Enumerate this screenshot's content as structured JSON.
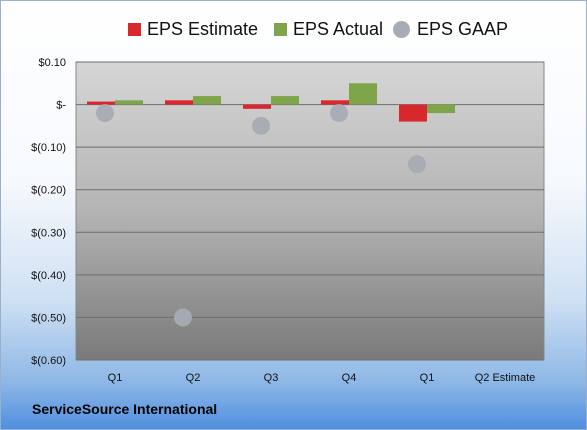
{
  "company": "ServiceSource International",
  "legend": [
    {
      "label": "EPS Estimate",
      "color": "#d9272e",
      "shape": "square"
    },
    {
      "label": "EPS Actual",
      "color": "#7fa54a",
      "shape": "square"
    },
    {
      "label": "EPS GAAP",
      "color": "#a6acb4",
      "shape": "circle"
    }
  ],
  "chart_data": {
    "type": "bar",
    "categories": [
      "Q1",
      "Q2",
      "Q3",
      "Q4",
      "Q1",
      "Q2 Estimate"
    ],
    "ylim": [
      -0.6,
      0.1
    ],
    "yticks": [
      0.1,
      0,
      -0.1,
      -0.2,
      -0.3,
      -0.4,
      -0.5,
      -0.6
    ],
    "ytick_labels": [
      "$0.10",
      "$-",
      "$(0.10)",
      "$(0.20)",
      "$(0.30)",
      "$(0.40)",
      "$(0.50)",
      "$(0.60)"
    ],
    "grid": true,
    "legend_position": "top",
    "series": [
      {
        "name": "EPS Estimate",
        "type": "bar",
        "color": "#d9272e",
        "values": [
          0.0,
          0.01,
          -0.01,
          0.01,
          -0.04,
          null
        ]
      },
      {
        "name": "EPS Actual",
        "type": "bar",
        "color": "#7fa54a",
        "values": [
          0.01,
          0.02,
          0.02,
          0.05,
          -0.02,
          null
        ]
      },
      {
        "name": "EPS GAAP",
        "type": "scatter",
        "color": "#a6acb4",
        "values": [
          -0.02,
          -0.5,
          -0.05,
          -0.02,
          -0.14,
          null
        ]
      }
    ]
  }
}
